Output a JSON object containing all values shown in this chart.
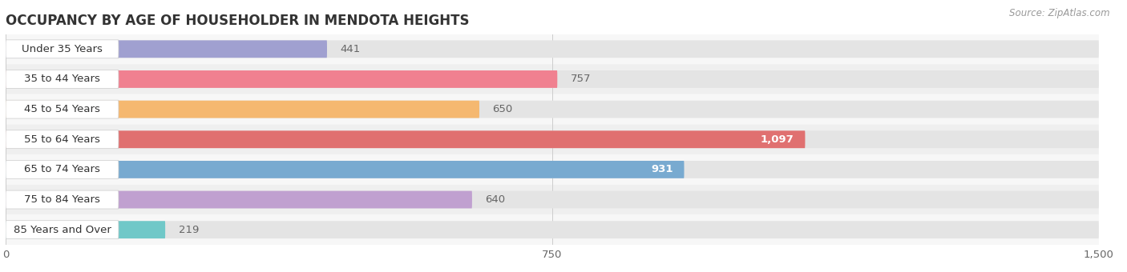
{
  "title": "OCCUPANCY BY AGE OF HOUSEHOLDER IN MENDOTA HEIGHTS",
  "source": "Source: ZipAtlas.com",
  "categories": [
    "Under 35 Years",
    "35 to 44 Years",
    "45 to 54 Years",
    "55 to 64 Years",
    "65 to 74 Years",
    "75 to 84 Years",
    "85 Years and Over"
  ],
  "values": [
    441,
    757,
    650,
    1097,
    931,
    640,
    219
  ],
  "bar_colors": [
    "#a0a0d0",
    "#f08090",
    "#f5b870",
    "#e07070",
    "#78aad0",
    "#c0a0d0",
    "#70c8c8"
  ],
  "value_inside": [
    false,
    false,
    false,
    true,
    true,
    false,
    false
  ],
  "row_bg_colors": [
    "#f7f7f7",
    "#efefef"
  ],
  "xlim": [
    0,
    1500
  ],
  "xticks": [
    0,
    750,
    1500
  ],
  "title_fontsize": 12,
  "label_fontsize": 9.5,
  "value_fontsize": 9.5,
  "source_fontsize": 8.5
}
